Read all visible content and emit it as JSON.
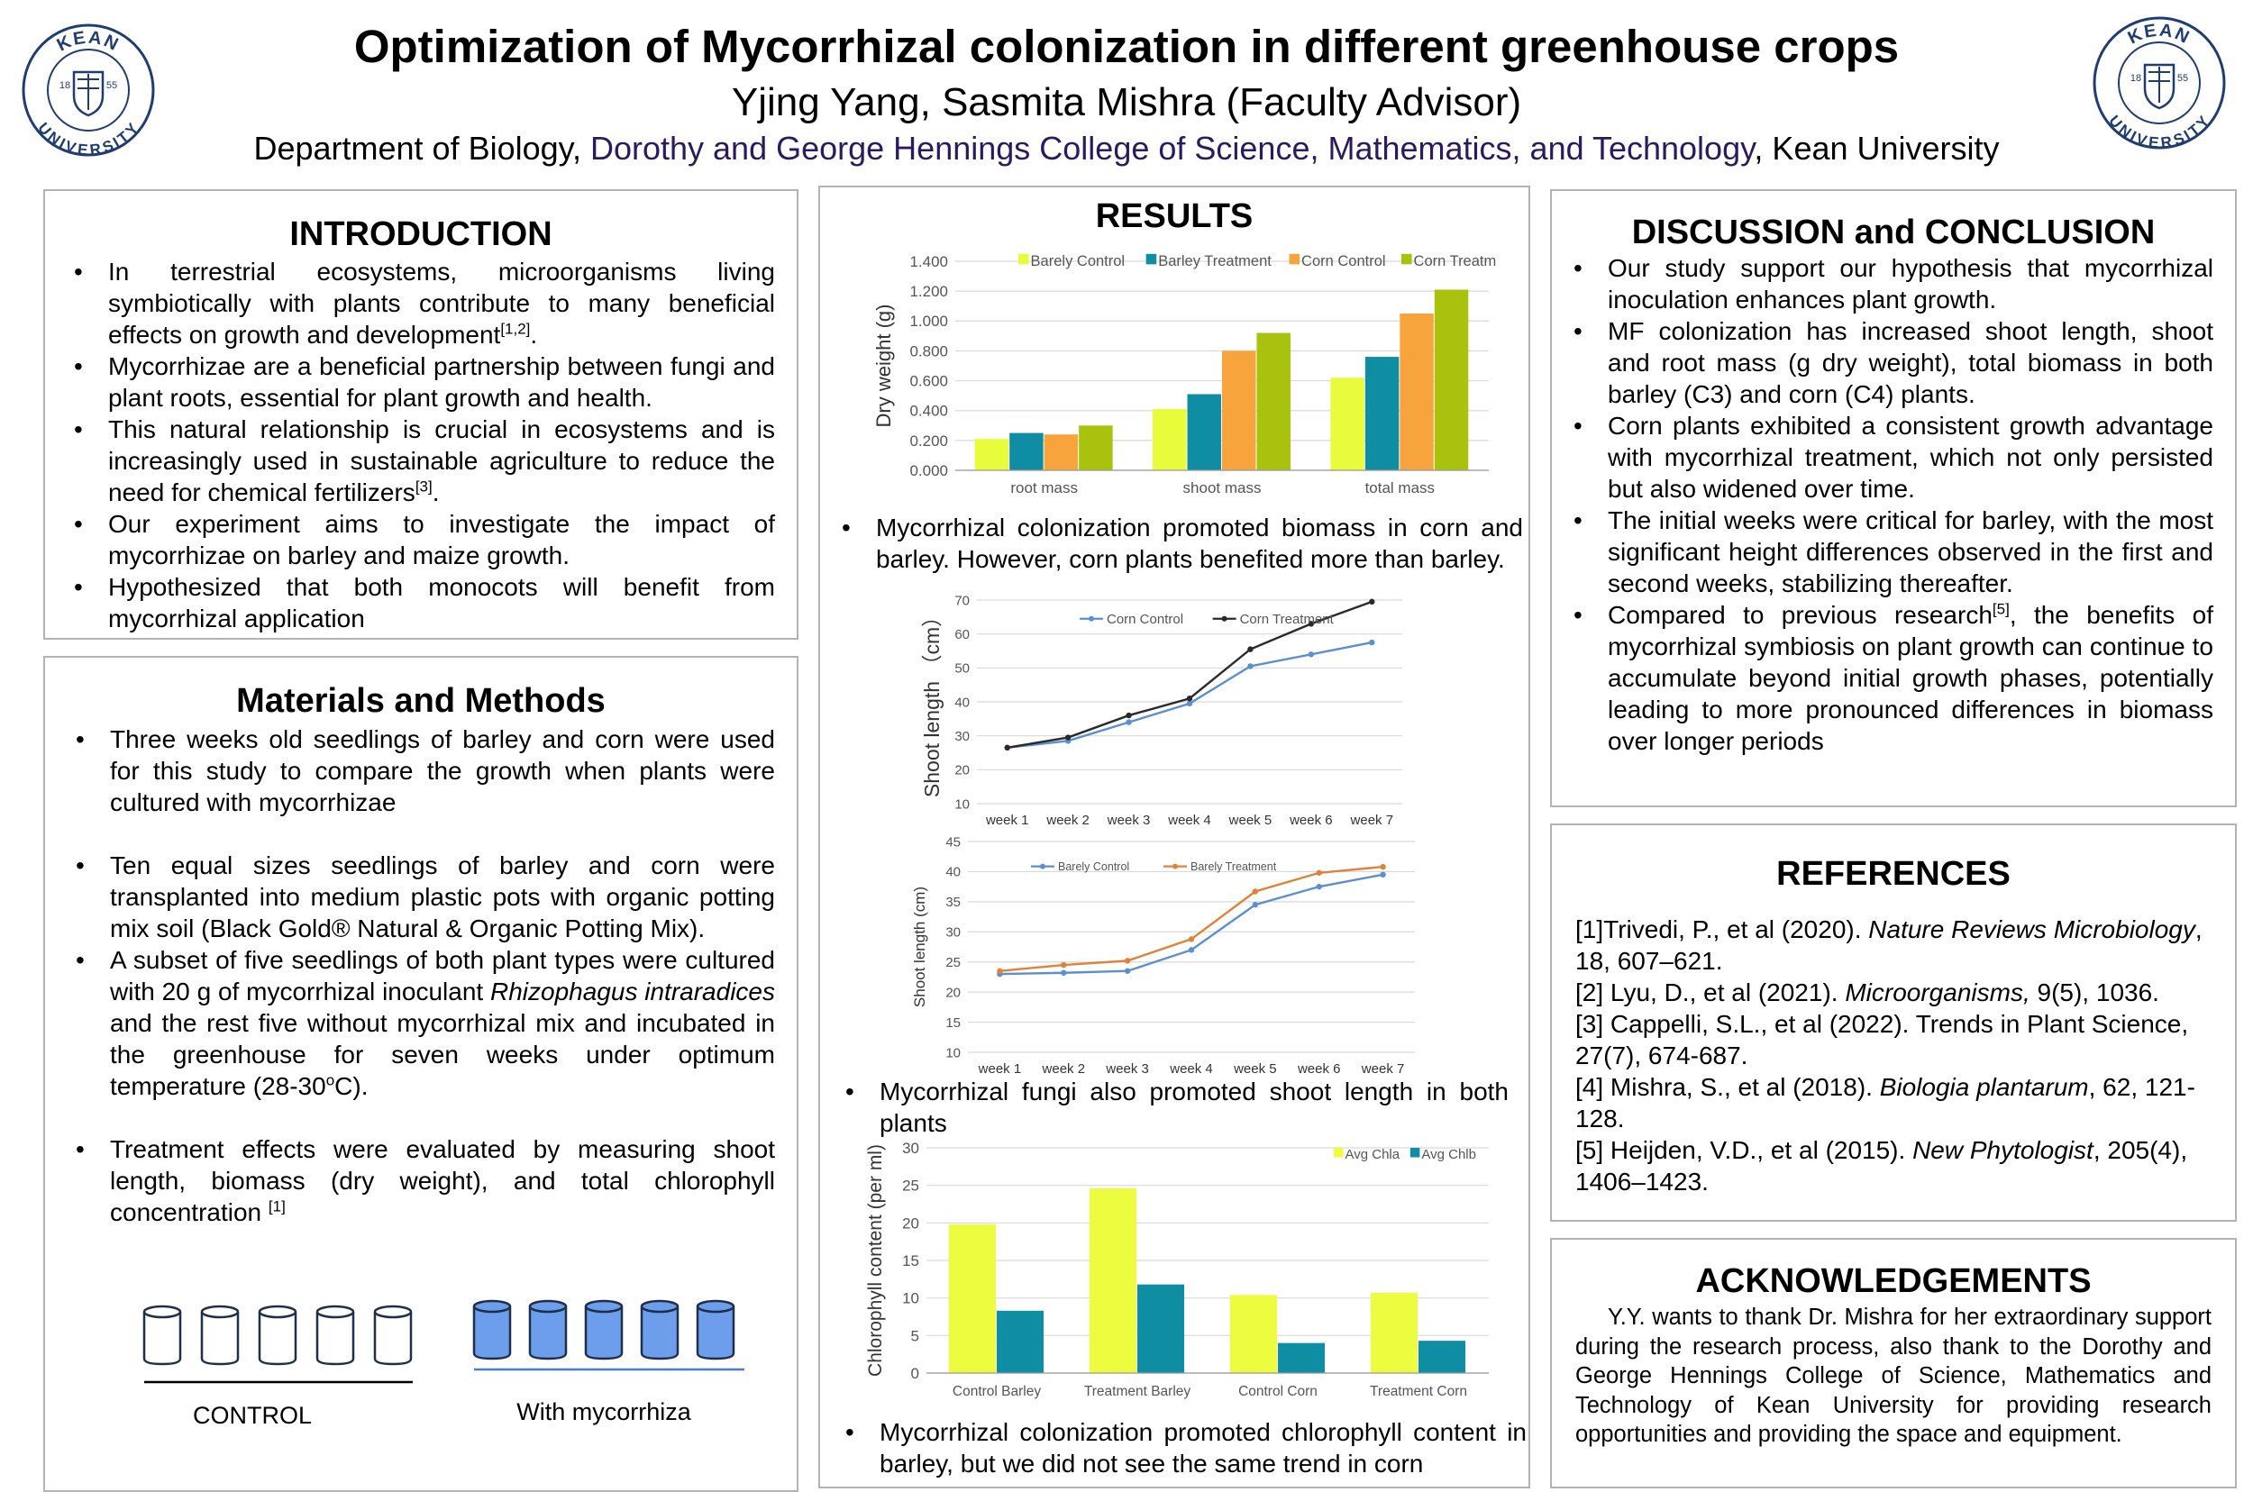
{
  "header": {
    "title": "Optimization of Mycorrhizal colonization in different greenhouse crops",
    "authors": "Yjing Yang, Sasmita Mishra (Faculty Advisor)",
    "dept_prefix": "Department of Biology, ",
    "dept_college": "Dorothy and George Hennings College of Science, Mathematics, and Technology",
    "dept_suffix": ", Kean University",
    "logo": {
      "top": "KEAN",
      "bottom": "UNIVERSITY",
      "year_left": "18",
      "year_right": "55"
    }
  },
  "introduction": {
    "heading": "INTRODUCTION",
    "b1": "In terrestrial ecosystems, microorganisms living symbiotically with plants contribute to many beneficial effects on growth and development",
    "b1_sup": "[1,2]",
    "b2": "Mycorrhizae are a beneficial partnership between fungi and plant roots, essential for plant growth and health.",
    "b3": "This natural relationship is crucial in ecosystems and is increasingly used in sustainable agriculture to reduce the need for chemical fertilizers",
    "b3_sup": "[3]",
    "b4": "Our experiment aims to investigate the impact of mycorrhizae on barley and maize growth.",
    "b5": "Hypothesized that both monocots will benefit from mycorrhizal application"
  },
  "methods": {
    "heading": "Materials and Methods",
    "b1": "Three weeks old seedlings of barley and corn were used for this study to compare the  growth when plants were cultured with mycorrhizae",
    "b2": "Ten equal sizes seedlings of barley and corn were transplanted into medium plastic pots with organic potting mix soil (Black Gold® Natural & Organic Potting Mix).",
    "b3_a": "A subset of five seedlings of both plant types were cultured with 20 g of mycorrhizal inoculant ",
    "b3_species": "Rhizophagus intraradices",
    "b3_b": " and the rest five without mycorrhizal mix and incubated in the greenhouse for seven weeks under optimum  temperature (28-30",
    "b3_deg": "o",
    "b3_c": "C).",
    "b4": "Treatment effects were evaluated by measuring shoot length, biomass (dry weight), and total chlorophyll concentration ",
    "b4_sup": "[1]",
    "control_label": "CONTROL",
    "myco_label": "With mycorrhiza"
  },
  "results": {
    "heading": "RESULTS",
    "cap1": "Mycorrhizal colonization promoted biomass in corn and barley. However, corn plants benefited more than barley.",
    "cap2": "Mycorrhizal fungi also promoted shoot length in both plants",
    "cap3": "Mycorrhizal colonization promoted chlorophyll content in barley, but we did not see the same trend in corn"
  },
  "discussion": {
    "heading": "DISCUSSION and CONCLUSION",
    "b1": "Our study support our hypothesis that mycorrhizal inoculation enhances plant growth.",
    "b2": "MF colonization has increased  shoot length, shoot and root mass (g dry weight), total biomass in both barley (C3) and corn (C4) plants.",
    "b3": "Corn plants exhibited a consistent growth advantage with mycorrhizal treatment, which not only persisted but also widened over time.",
    "b4": "The initial weeks were critical for barley, with the most significant height differences observed in the first and second weeks, stabilizing thereafter.",
    "b5_a": "Compared to previous research",
    "b5_sup": "[5]",
    "b5_b": ", the benefits of mycorrhizal symbiosis on plant growth can continue to accumulate beyond initial growth phases, potentially leading to more pronounced differences in biomass over longer periods"
  },
  "references": {
    "heading": "REFERENCES",
    "r1_a": "[1]Trivedi, P., et al (2020). ",
    "r1_j": "Nature Reviews Microbiology",
    "r1_b": ", 18, 607–621.",
    "r2_a": "[2] Lyu, D., et al (2021). ",
    "r2_j": "Microorganisms,",
    "r2_b": " 9(5), 1036.",
    "r3": "[3] Cappelli, S.L., et al (2022). Trends in Plant Science, 27(7), 674-687.",
    "r4_a": "[4] Mishra, S., et al (2018). ",
    "r4_j": "Biologia plantarum",
    "r4_b": ", 62, 121-128.",
    "r5_a": "[5] Heijden, V.D., et al (2015). ",
    "r5_j": "New Phytologist",
    "r5_b": ", 205(4), 1406–1423."
  },
  "acknowledgements": {
    "heading": "ACKNOWLEDGEMENTS",
    "text": "Y.Y. wants to thank Dr. Mishra for her extraordinary support during the research process, also thank to the Dorothy and George Hennings College of Science, Mathematics and Technology of Kean University for providing research opportunities and providing the space and equipment."
  },
  "chart_data": [
    {
      "type": "bar",
      "title": "",
      "ylabel": "Dry weight (g)",
      "xlabel": "",
      "categories": [
        "root mass",
        "shoot mass",
        "total mass"
      ],
      "ylim": [
        0,
        1.4
      ],
      "yticks": [
        "0.000",
        "0.200",
        "0.400",
        "0.600",
        "0.800",
        "1.000",
        "1.200",
        "1.400"
      ],
      "legend_position": "top",
      "series": [
        {
          "name": "Barely Control",
          "color": "#e8fc3c",
          "values": [
            0.21,
            0.41,
            0.62
          ]
        },
        {
          "name": "Barley Treatment",
          "color": "#0f8ea3",
          "values": [
            0.25,
            0.51,
            0.76
          ]
        },
        {
          "name": "Corn Control",
          "color": "#f8a43c",
          "values": [
            0.24,
            0.8,
            1.05
          ]
        },
        {
          "name": "Corn Treatment",
          "color": "#a9c20e",
          "values": [
            0.3,
            0.92,
            1.21
          ]
        }
      ]
    },
    {
      "type": "line",
      "ylabel": "Shoot length （cm）",
      "x": [
        "week 1",
        "week 2",
        "week 3",
        "week 4",
        "week 5",
        "week 6",
        "week 7"
      ],
      "ylim": [
        10,
        70
      ],
      "yticks": [
        "10",
        "20",
        "30",
        "40",
        "50",
        "60",
        "70"
      ],
      "legend_position": "top",
      "series": [
        {
          "name": "Corn Control",
          "color": "#5b8fd0",
          "values": [
            26.5,
            28.5,
            34,
            39.5,
            50.5,
            54,
            57.5
          ]
        },
        {
          "name": "Corn Treatment",
          "color": "#2a2a2a",
          "values": [
            26.5,
            29.5,
            36,
            41,
            55.5,
            63,
            69.5
          ]
        }
      ]
    },
    {
      "type": "line",
      "ylabel": "Shoot length   (cm)",
      "x": [
        "week 1",
        "week 2",
        "week 3",
        "week 4",
        "week 5",
        "week 6",
        "week 7"
      ],
      "ylim": [
        10,
        45
      ],
      "yticks": [
        "10",
        "15",
        "20",
        "25",
        "30",
        "35",
        "40",
        "45"
      ],
      "legend_position": "top",
      "series": [
        {
          "name": "Barely Control",
          "color": "#5b8fd0",
          "values": [
            23,
            23.2,
            23.5,
            27,
            34.5,
            37.5,
            39.5
          ]
        },
        {
          "name": "Barely Treatment",
          "color": "#e0823a",
          "values": [
            23.5,
            24.5,
            25.2,
            28.8,
            36.7,
            39.8,
            40.8
          ]
        }
      ]
    },
    {
      "type": "bar",
      "ylabel": "Chlorophyll content  (per ml)",
      "categories": [
        "Control Barley",
        "Treatment Barley",
        "Control Corn",
        "Treatment Corn"
      ],
      "ylim": [
        0,
        30
      ],
      "yticks": [
        "0",
        "5",
        "10",
        "15",
        "20",
        "25",
        "30"
      ],
      "legend_position": "top-right",
      "series": [
        {
          "name": "Avg Chla",
          "color": "#ecfc3e",
          "values": [
            19.8,
            24.6,
            10.4,
            10.7
          ]
        },
        {
          "name": "Avg Chlb",
          "color": "#0f8ea3",
          "values": [
            8.3,
            11.8,
            4.0,
            4.3
          ]
        }
      ]
    }
  ]
}
